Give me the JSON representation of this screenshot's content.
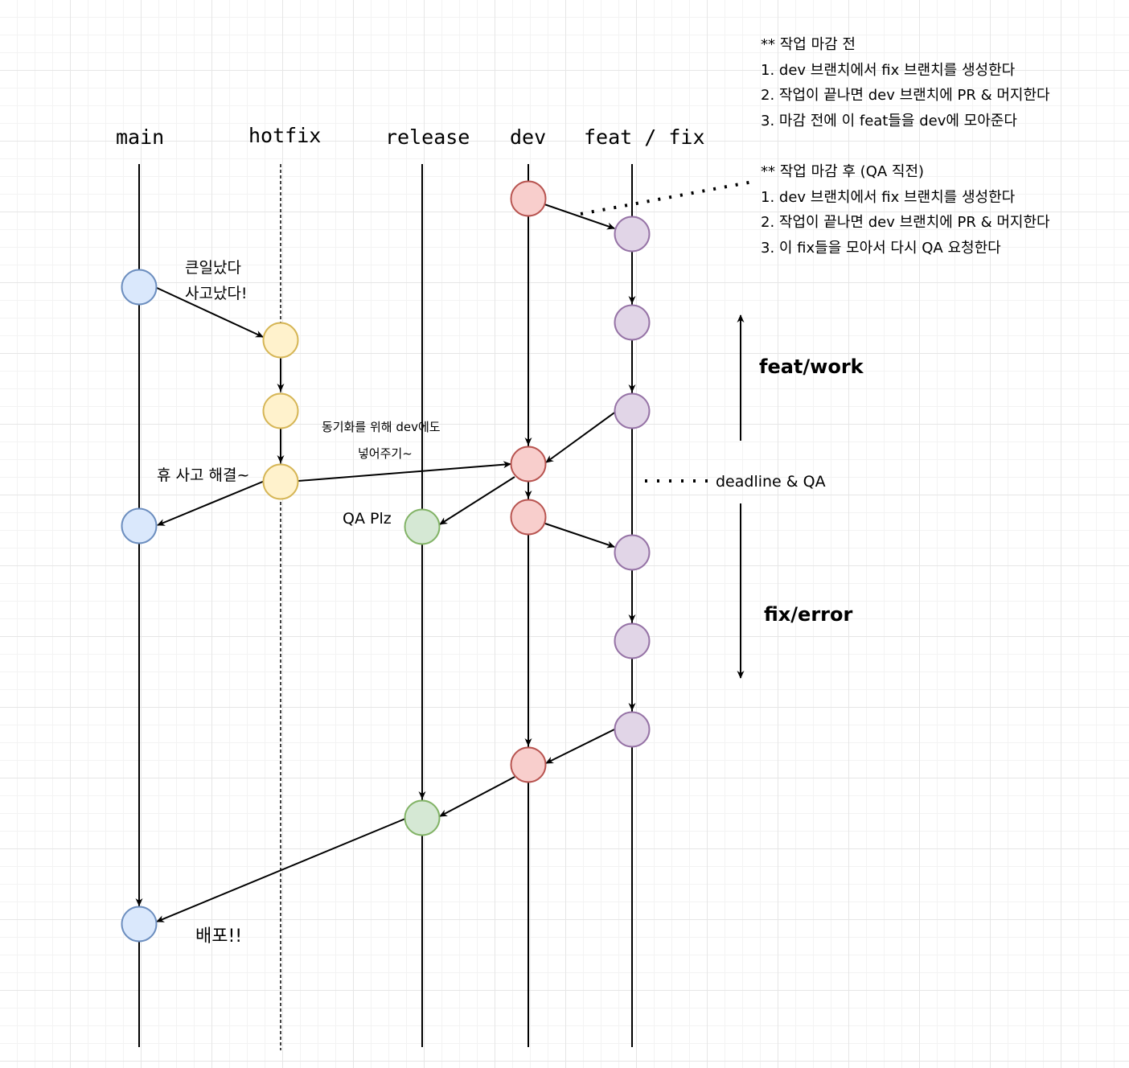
{
  "branches": [
    "main",
    "hotfix",
    "release",
    "dev",
    "feat / fix"
  ],
  "notes": {
    "before_title": "** 작업 마감 전",
    "before_1": "1. dev 브랜치에서 fix 브랜치를 생성한다",
    "before_2": "2. 작업이 끝나면 dev 브랜치에 PR & 머지한다",
    "before_3": "3. 마감 전에 이 feat들을 dev에 모아준다",
    "after_title": "** 작업 마감 후 (QA 직전)",
    "after_1": "1. dev 브랜치에서 fix 브랜치를 생성한다",
    "after_2": "2. 작업이 끝나면 dev 브랜치에 PR & 머지한다",
    "after_3": "3. 이 fix들을 모아서 다시 QA 요청한다"
  },
  "labels": {
    "incident_1": "큰일났다",
    "incident_2": "사고났다!",
    "sync_1": "동기화를 위해 dev에도",
    "sync_2": "넣어주기~",
    "resolved": "휴 사고 해결~",
    "qa": "QA Plz",
    "deploy": "배포!!",
    "deadline": "deadline & QA",
    "feat_work": "feat/work",
    "fix_error": "fix/error"
  },
  "colors": {
    "main_fill": "#dae8fc",
    "main_stroke": "#6c8ebf",
    "hotfix_fill": "#fff2cc",
    "hotfix_stroke": "#d6b656",
    "release_fill": "#d5e8d4",
    "release_stroke": "#82b366",
    "dev_fill": "#f8cecc",
    "dev_stroke": "#b85450",
    "feat_fill": "#e1d5e7",
    "feat_stroke": "#9673a6"
  }
}
